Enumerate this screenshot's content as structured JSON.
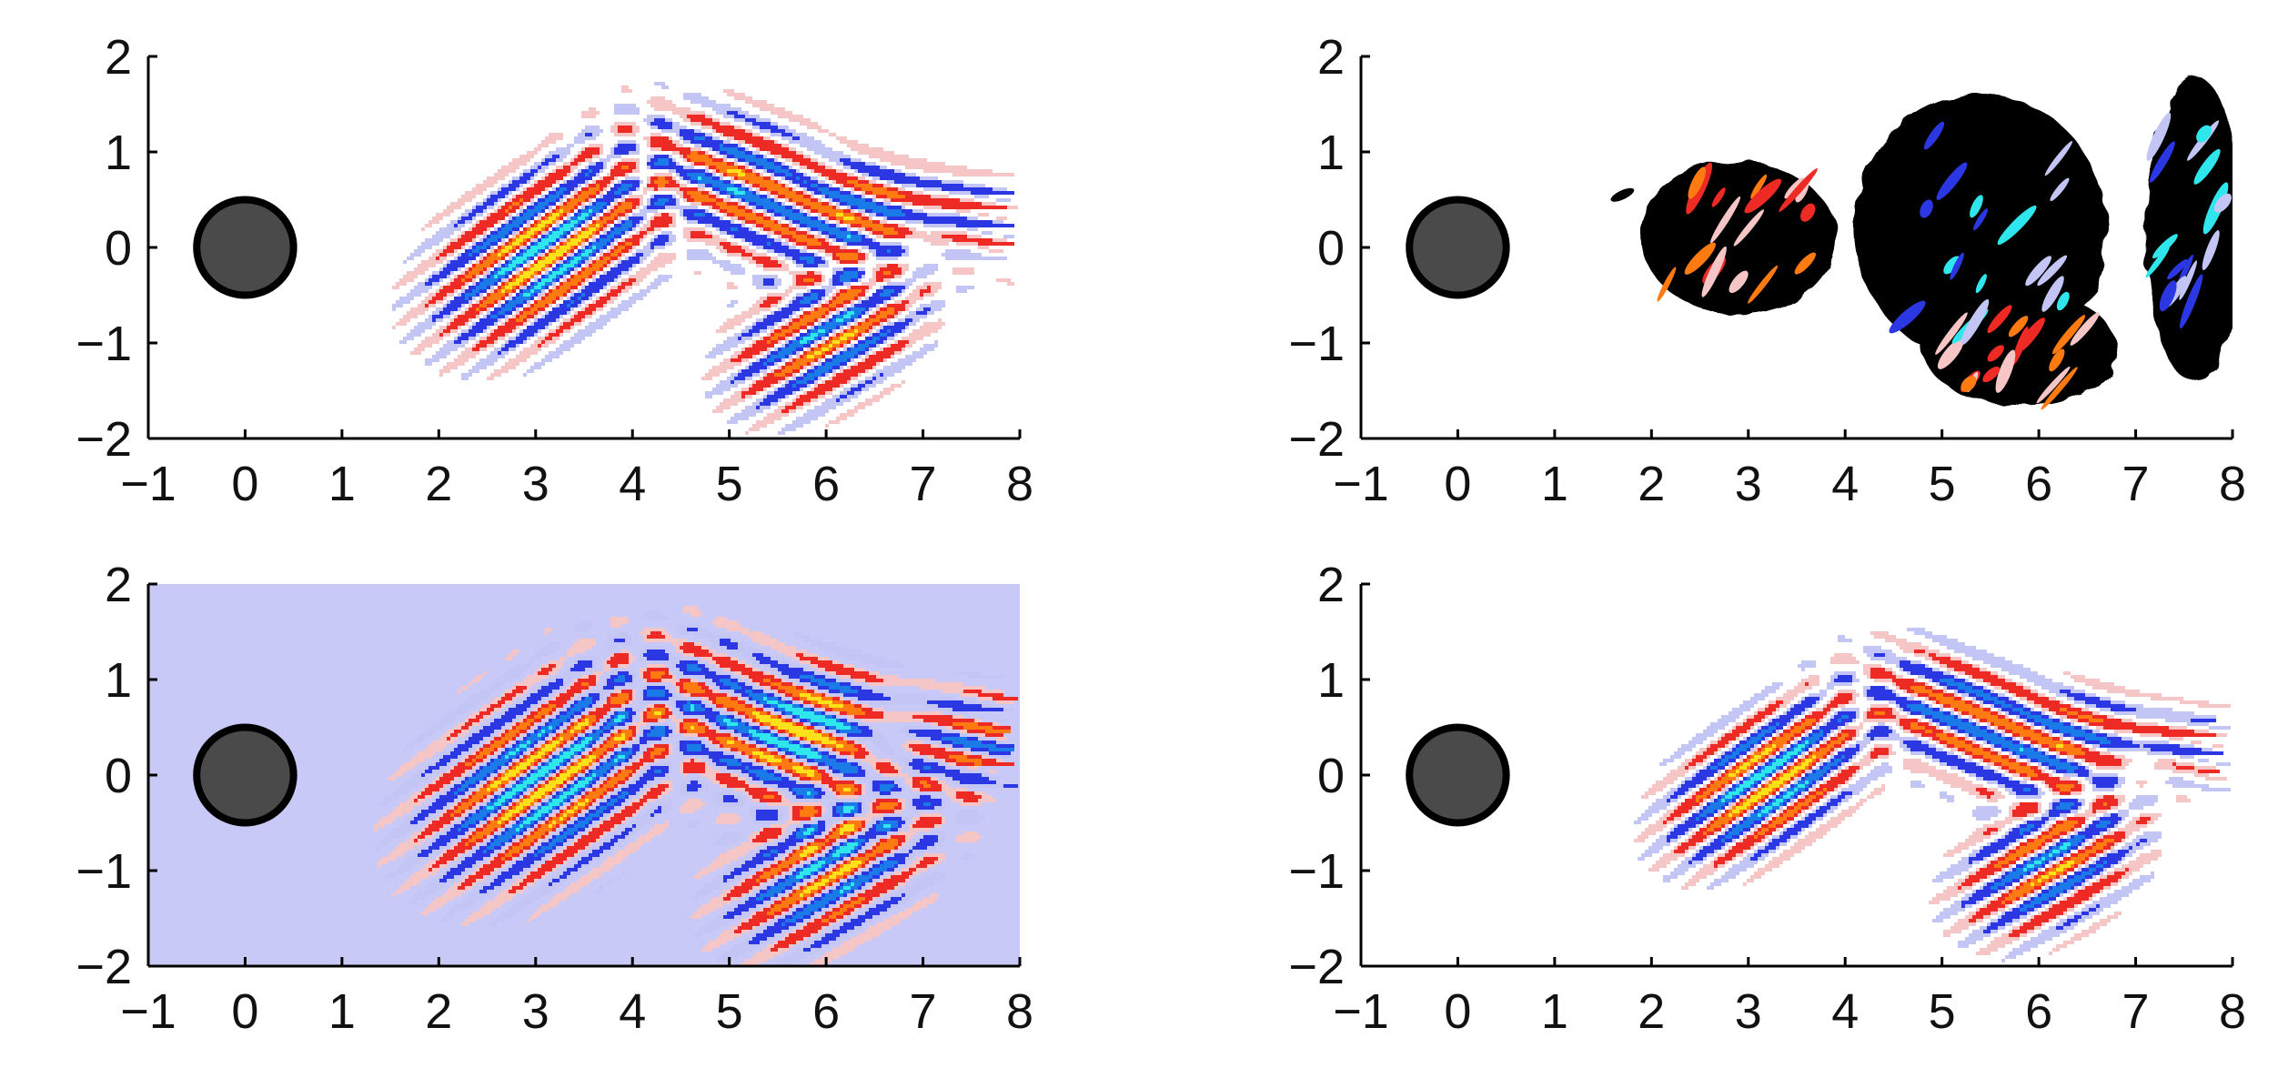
{
  "chart_data": [
    {
      "type": "heatmap",
      "title": "",
      "xlabel": "",
      "ylabel": "",
      "xlim": [
        -1,
        8
      ],
      "ylim": [
        -2,
        2
      ],
      "xticks": [
        -1,
        0,
        1,
        2,
        3,
        4,
        5,
        6,
        7,
        8
      ],
      "yticks": [
        -2,
        -1,
        0,
        1,
        2
      ],
      "xtick_labels": [
        "−1",
        "0",
        "1",
        "2",
        "3",
        "4",
        "5",
        "6",
        "7",
        "8"
      ],
      "ytick_labels": [
        "−2",
        "−1",
        "0",
        "1",
        "2"
      ],
      "cylinder": {
        "x": 0,
        "y": 0,
        "radius": 0.5
      },
      "background": "white",
      "colormap": "blue-white-red",
      "wave_packets": [
        {
          "x": 3.1,
          "y": -0.05,
          "a": 0.55,
          "b": 0.9,
          "tilt_deg": -55,
          "wavelength": 0.34,
          "peak": 1.0
        },
        {
          "x": 5.4,
          "y": 0.55,
          "a": 0.5,
          "b": 1.0,
          "tilt_deg": 68,
          "wavelength": 0.38,
          "peak": 0.85
        },
        {
          "x": 6.0,
          "y": -0.95,
          "a": 0.45,
          "b": 0.75,
          "tilt_deg": -60,
          "wavelength": 0.36,
          "peak": 0.85
        },
        {
          "x": 7.7,
          "y": 0.3,
          "a": 0.35,
          "b": 1.3,
          "tilt_deg": 80,
          "wavelength": 0.36,
          "peak": 0.55
        }
      ]
    },
    {
      "type": "heatmap",
      "title": "",
      "xlabel": "",
      "ylabel": "",
      "xlim": [
        -1,
        8
      ],
      "ylim": [
        -2,
        2
      ],
      "xticks": [
        -1,
        0,
        1,
        2,
        3,
        4,
        5,
        6,
        7,
        8
      ],
      "yticks": [
        -2,
        -1,
        0,
        1,
        2
      ],
      "xtick_labels": [
        "−1",
        "0",
        "1",
        "2",
        "3",
        "4",
        "5",
        "6",
        "7",
        "8"
      ],
      "ytick_labels": [
        "−2",
        "−1",
        "0",
        "1",
        "2"
      ],
      "cylinder": {
        "x": 0,
        "y": 0,
        "radius": 0.5
      },
      "background": "white",
      "colormap": "blue-white-red with black contour lines",
      "contour_blobs": [
        {
          "x": 2.9,
          "y": 0.1,
          "rx": 1.0,
          "ry": 0.8
        },
        {
          "x": 5.4,
          "y": 0.2,
          "rx": 1.3,
          "ry": 1.4
        },
        {
          "x": 5.8,
          "y": -1.05,
          "rx": 1.0,
          "ry": 0.6
        },
        {
          "x": 7.6,
          "y": 0.2,
          "rx": 0.5,
          "ry": 1.6
        }
      ]
    },
    {
      "type": "heatmap",
      "title": "",
      "xlabel": "",
      "ylabel": "",
      "xlim": [
        -1,
        8
      ],
      "ylim": [
        -2,
        2
      ],
      "xticks": [
        -1,
        0,
        1,
        2,
        3,
        4,
        5,
        6,
        7,
        8
      ],
      "yticks": [
        -2,
        -1,
        0,
        1,
        2
      ],
      "xtick_labels": [
        "−1",
        "0",
        "1",
        "2",
        "3",
        "4",
        "5",
        "6",
        "7",
        "8"
      ],
      "ytick_labels": [
        "−2",
        "−1",
        "0",
        "1",
        "2"
      ],
      "cylinder": {
        "x": 0,
        "y": 0,
        "radius": 0.5
      },
      "background": "#c8c9f6",
      "colormap": "blue-white-red",
      "wave_packets": [
        {
          "x": 3.1,
          "y": -0.05,
          "a": 0.65,
          "b": 1.0,
          "tilt_deg": -55,
          "wavelength": 0.34,
          "peak": 1.0
        },
        {
          "x": 5.5,
          "y": 0.45,
          "a": 0.55,
          "b": 1.1,
          "tilt_deg": 68,
          "wavelength": 0.38,
          "peak": 0.9
        },
        {
          "x": 6.0,
          "y": -1.0,
          "a": 0.5,
          "b": 0.8,
          "tilt_deg": -60,
          "wavelength": 0.36,
          "peak": 0.9
        },
        {
          "x": 7.6,
          "y": 0.4,
          "a": 0.4,
          "b": 1.4,
          "tilt_deg": 80,
          "wavelength": 0.36,
          "peak": 0.6
        }
      ]
    },
    {
      "type": "heatmap",
      "title": "",
      "xlabel": "",
      "ylabel": "",
      "xlim": [
        -1,
        8
      ],
      "ylim": [
        -2,
        2
      ],
      "xticks": [
        -1,
        0,
        1,
        2,
        3,
        4,
        5,
        6,
        7,
        8
      ],
      "yticks": [
        -2,
        -1,
        0,
        1,
        2
      ],
      "xtick_labels": [
        "−1",
        "0",
        "1",
        "2",
        "3",
        "4",
        "5",
        "6",
        "7",
        "8"
      ],
      "ytick_labels": [
        "−2",
        "−1",
        "0",
        "1",
        "2"
      ],
      "cylinder": {
        "x": 0,
        "y": 0,
        "radius": 0.5
      },
      "background": "white",
      "colormap": "blue-white-red",
      "wave_packets": [
        {
          "x": 3.2,
          "y": -0.05,
          "a": 0.45,
          "b": 0.8,
          "tilt_deg": -55,
          "wavelength": 0.34,
          "peak": 1.0
        },
        {
          "x": 5.5,
          "y": 0.5,
          "a": 0.45,
          "b": 0.95,
          "tilt_deg": 68,
          "wavelength": 0.38,
          "peak": 0.85
        },
        {
          "x": 6.1,
          "y": -0.95,
          "a": 0.45,
          "b": 0.7,
          "tilt_deg": -60,
          "wavelength": 0.36,
          "peak": 0.85
        },
        {
          "x": 7.7,
          "y": 0.3,
          "a": 0.3,
          "b": 1.2,
          "tilt_deg": 80,
          "wavelength": 0.36,
          "peak": 0.5
        }
      ]
    }
  ]
}
